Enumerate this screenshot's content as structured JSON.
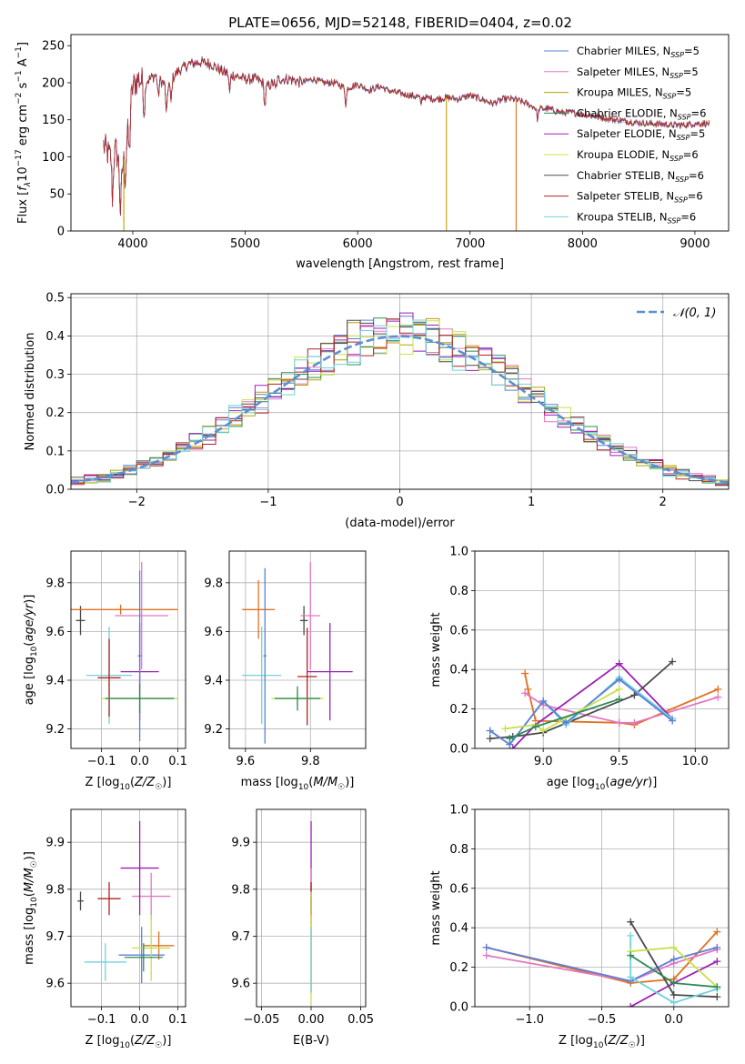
{
  "title": "PLATE=0656, MJD=52148, FIBERID=0404, z=0.02",
  "colors": {
    "blue": "#5b7fd6",
    "pink": "#e377c2",
    "olive": "#b8a000",
    "green": "#2e8b57",
    "purple": "#9b1fb4",
    "yellow": "#c8e04a",
    "gray": "#4a4a4a",
    "red": "#b22222",
    "cyan": "#6fd3d9",
    "orange": "#e07020",
    "ref": "#5a8fd6"
  },
  "chart_data": [
    {
      "id": "spectrum",
      "type": "line",
      "xlabel": "wavelength [Angstrom, rest frame]",
      "ylabel": "Flux [f_λ 10^-17 erg cm^-2 s^-1 A^-1]",
      "xlim": [
        3450,
        9300
      ],
      "ylim": [
        0,
        265
      ],
      "xticks": [
        4000,
        5000,
        6000,
        7000,
        8000,
        9000
      ],
      "yticks": [
        0,
        50,
        100,
        150,
        200,
        250
      ],
      "legend_position": "top-right",
      "legend": [
        {
          "label": "Chabrier MILES, N",
          "sub": "SSP",
          "tail": "=5",
          "color": "blue"
        },
        {
          "label": "Salpeter MILES, N",
          "sub": "SSP",
          "tail": "=5",
          "color": "pink"
        },
        {
          "label": "Kroupa MILES, N",
          "sub": "SSP",
          "tail": "=5",
          "color": "olive"
        },
        {
          "label": "Chabrier ELODIE, N",
          "sub": "SSP",
          "tail": "=6",
          "color": "green"
        },
        {
          "label": "Salpeter ELODIE, N",
          "sub": "SSP",
          "tail": "=5",
          "color": "purple"
        },
        {
          "label": "Kroupa ELODIE, N",
          "sub": "SSP",
          "tail": "=6",
          "color": "yellow"
        },
        {
          "label": "Chabrier STELIB, N",
          "sub": "SSP",
          "tail": "=6",
          "color": "gray"
        },
        {
          "label": "Salpeter STELIB, N",
          "sub": "SSP",
          "tail": "=6",
          "color": "red"
        },
        {
          "label": "Kroupa STELIB, N",
          "sub": "SSP",
          "tail": "=6",
          "color": "cyan"
        }
      ],
      "continuum": [
        [
          3740,
          115
        ],
        [
          3800,
          100
        ],
        [
          3850,
          110
        ],
        [
          3900,
          75
        ],
        [
          3950,
          130
        ],
        [
          4000,
          195
        ],
        [
          4050,
          205
        ],
        [
          4100,
          200
        ],
        [
          4150,
          205
        ],
        [
          4200,
          210
        ],
        [
          4300,
          195
        ],
        [
          4400,
          215
        ],
        [
          4500,
          225
        ],
        [
          4600,
          228
        ],
        [
          4700,
          225
        ],
        [
          4800,
          215
        ],
        [
          4900,
          210
        ],
        [
          5000,
          205
        ],
        [
          5100,
          205
        ],
        [
          5200,
          195
        ],
        [
          5300,
          205
        ],
        [
          5400,
          205
        ],
        [
          5500,
          200
        ],
        [
          5600,
          205
        ],
        [
          5700,
          200
        ],
        [
          5800,
          200
        ],
        [
          5900,
          192
        ],
        [
          6000,
          198
        ],
        [
          6100,
          190
        ],
        [
          6200,
          195
        ],
        [
          6300,
          188
        ],
        [
          6400,
          185
        ],
        [
          6500,
          182
        ],
        [
          6600,
          180
        ],
        [
          6700,
          178
        ],
        [
          6800,
          180
        ],
        [
          6900,
          178
        ],
        [
          7000,
          183
        ],
        [
          7100,
          178
        ],
        [
          7200,
          172
        ],
        [
          7300,
          178
        ],
        [
          7400,
          178
        ],
        [
          7500,
          172
        ],
        [
          7600,
          165
        ],
        [
          7700,
          165
        ],
        [
          7800,
          160
        ],
        [
          7900,
          160
        ],
        [
          8000,
          158
        ],
        [
          8100,
          155
        ],
        [
          8200,
          152
        ],
        [
          8300,
          150
        ],
        [
          8400,
          148
        ],
        [
          8500,
          146
        ],
        [
          8600,
          145
        ],
        [
          8700,
          144
        ],
        [
          8800,
          143
        ],
        [
          8900,
          143
        ],
        [
          9000,
          145
        ],
        [
          9100,
          145
        ]
      ],
      "absorption_lines": [
        [
          3820,
          60
        ],
        [
          3890,
          55
        ],
        [
          3934,
          40
        ],
        [
          3969,
          50
        ],
        [
          4102,
          45
        ],
        [
          4227,
          25
        ],
        [
          4300,
          40
        ],
        [
          4340,
          30
        ],
        [
          4861,
          25
        ],
        [
          5175,
          30
        ],
        [
          5270,
          12
        ],
        [
          5895,
          22
        ],
        [
          6563,
          10
        ],
        [
          7600,
          15
        ]
      ],
      "drops": [
        [
          3920,
          "olive"
        ],
        [
          6790,
          "olive"
        ],
        [
          7410,
          "orange"
        ]
      ]
    },
    {
      "id": "residuals",
      "type": "histogram",
      "xlabel": "(data-model)/error",
      "ylabel": "Normed distribution",
      "xlim": [
        -2.5,
        2.5
      ],
      "ylim": [
        0,
        0.51
      ],
      "xticks": [
        -2,
        -1,
        0,
        1,
        2
      ],
      "yticks": [
        0.0,
        0.1,
        0.2,
        0.3,
        0.4,
        0.5
      ],
      "grid": true,
      "legend_position": "top-right",
      "reference_label": "𝒩(0, 1)",
      "bin_width": 0.1,
      "series_colors": [
        "blue",
        "pink",
        "olive",
        "green",
        "purple",
        "yellow",
        "gray",
        "red",
        "cyan"
      ]
    },
    {
      "id": "age_vs_Z",
      "type": "errorbar",
      "xlabel": "Z [log10(Z/Z☉)]",
      "ylabel": "age  [log10(age/yr)]",
      "xlim": [
        -0.18,
        0.12
      ],
      "ylim": [
        9.12,
        9.93
      ],
      "xticks": [
        -0.1,
        0.0,
        0.1
      ],
      "yticks": [
        9.2,
        9.4,
        9.6,
        9.8
      ],
      "grid": true,
      "points": [
        {
          "x": -0.155,
          "y": 9.645,
          "xerr": 0.012,
          "yerr": 0.06,
          "color": "gray"
        },
        {
          "x": -0.08,
          "y": 9.42,
          "xerr": 0.06,
          "yerr": 0.2,
          "color": "cyan"
        },
        {
          "x": -0.08,
          "y": 9.41,
          "xerr": 0.03,
          "yerr": 0.16,
          "color": "red"
        },
        {
          "x": -0.05,
          "y": 9.69,
          "xerr": 0.15,
          "yerr": 0.02,
          "color": "orange"
        },
        {
          "x": 0.005,
          "y": 9.665,
          "xerr": 0.07,
          "yerr": 0.22,
          "color": "pink"
        },
        {
          "x": 0.0,
          "y": 9.435,
          "xerr": 0.05,
          "yerr": 0.2,
          "color": "purple"
        },
        {
          "x": 0.0,
          "y": 9.5,
          "xerr": 0.005,
          "yerr": 0.35,
          "color": "blue"
        },
        {
          "x": 0.0,
          "y": 9.325,
          "xerr": 0.1,
          "yerr": 0.05,
          "color": "yellow"
        },
        {
          "x": 0.0,
          "y": 9.325,
          "xerr": 0.09,
          "yerr": 0.06,
          "color": "green"
        }
      ]
    },
    {
      "id": "age_vs_mass",
      "type": "errorbar",
      "xlabel": "mass [log10(M/M☉)]",
      "ylabel": "",
      "xlim": [
        9.55,
        9.97
      ],
      "ylim": [
        9.12,
        9.93
      ],
      "xticks": [
        9.6,
        9.8
      ],
      "yticks": [
        9.2,
        9.4,
        9.6,
        9.8
      ],
      "grid": true,
      "points": [
        {
          "x": 9.78,
          "y": 9.645,
          "xerr": 0.012,
          "yerr": 0.06,
          "color": "gray"
        },
        {
          "x": 9.65,
          "y": 9.42,
          "xerr": 0.06,
          "yerr": 0.2,
          "color": "cyan"
        },
        {
          "x": 9.79,
          "y": 9.415,
          "xerr": 0.03,
          "yerr": 0.2,
          "color": "red"
        },
        {
          "x": 9.64,
          "y": 9.69,
          "xerr": 0.05,
          "yerr": 0.12,
          "color": "orange"
        },
        {
          "x": 9.8,
          "y": 9.665,
          "xerr": 0.03,
          "yerr": 0.22,
          "color": "pink"
        },
        {
          "x": 9.86,
          "y": 9.435,
          "xerr": 0.07,
          "yerr": 0.2,
          "color": "purple"
        },
        {
          "x": 9.66,
          "y": 9.5,
          "xerr": 0.005,
          "yerr": 0.36,
          "color": "blue"
        },
        {
          "x": 9.76,
          "y": 9.325,
          "xerr": 0.08,
          "yerr": 0.03,
          "color": "yellow"
        },
        {
          "x": 9.76,
          "y": 9.325,
          "xerr": 0.07,
          "yerr": 0.05,
          "color": "green"
        }
      ]
    },
    {
      "id": "mass_weight_vs_age",
      "type": "line",
      "xlabel": "age  [log10(age/yr)]",
      "ylabel": "mass weight",
      "xlim": [
        8.55,
        10.22
      ],
      "ylim": [
        0,
        1.0
      ],
      "xticks": [
        9.0,
        9.5,
        10.0
      ],
      "yticks": [
        0.0,
        0.2,
        0.4,
        0.6,
        0.8,
        1.0
      ],
      "grid": true,
      "series": [
        {
          "color": "orange",
          "x": [
            8.88,
            8.9,
            8.95,
            9.5,
            9.6,
            10.15
          ],
          "y": [
            0.38,
            0.3,
            0.14,
            0.13,
            0.12,
            0.3
          ]
        },
        {
          "color": "pink",
          "x": [
            8.88,
            9.0,
            9.5,
            9.6,
            10.15
          ],
          "y": [
            0.28,
            0.22,
            0.13,
            0.13,
            0.26
          ]
        },
        {
          "color": "purple",
          "x": [
            8.8,
            8.95,
            9.5,
            9.85
          ],
          "y": [
            0.0,
            0.12,
            0.43,
            0.15
          ]
        },
        {
          "color": "gray",
          "x": [
            8.65,
            8.8,
            9.0,
            9.6,
            9.85
          ],
          "y": [
            0.05,
            0.06,
            0.08,
            0.27,
            0.44
          ]
        },
        {
          "color": "cyan",
          "x": [
            8.65,
            8.78,
            9.0,
            9.15,
            9.5,
            9.85
          ],
          "y": [
            0.09,
            0.02,
            0.24,
            0.12,
            0.36,
            0.15
          ]
        },
        {
          "color": "blue",
          "x": [
            8.65,
            8.78,
            9.0,
            9.15,
            9.5,
            9.85
          ],
          "y": [
            0.09,
            0.02,
            0.24,
            0.13,
            0.35,
            0.14
          ]
        },
        {
          "color": "yellow",
          "x": [
            8.75,
            8.95,
            9.0,
            9.5
          ],
          "y": [
            0.1,
            0.12,
            0.09,
            0.3
          ]
        },
        {
          "color": "green",
          "x": [
            8.78,
            8.95,
            9.5
          ],
          "y": [
            0.05,
            0.11,
            0.25
          ]
        }
      ]
    },
    {
      "id": "mass_vs_Z",
      "type": "errorbar",
      "xlabel": "Z [log10(Z/Z☉)]",
      "ylabel": "mass [log10(M/M☉)]",
      "xlim": [
        -0.18,
        0.12
      ],
      "ylim": [
        9.55,
        9.97
      ],
      "xticks": [
        -0.1,
        0.0,
        0.1
      ],
      "yticks": [
        9.6,
        9.7,
        9.8,
        9.9
      ],
      "grid": true,
      "points": [
        {
          "x": -0.155,
          "y": 9.775,
          "xerr": 0.008,
          "yerr": 0.02,
          "color": "gray"
        },
        {
          "x": -0.09,
          "y": 9.645,
          "xerr": 0.055,
          "yerr": 0.04,
          "color": "cyan"
        },
        {
          "x": -0.08,
          "y": 9.78,
          "xerr": 0.03,
          "yerr": 0.035,
          "color": "red"
        },
        {
          "x": 0.05,
          "y": 9.68,
          "xerr": 0.04,
          "yerr": 0.03,
          "color": "orange"
        },
        {
          "x": 0.03,
          "y": 9.785,
          "xerr": 0.05,
          "yerr": 0.05,
          "color": "pink"
        },
        {
          "x": 0.0,
          "y": 9.845,
          "xerr": 0.05,
          "yerr": 0.1,
          "color": "purple"
        },
        {
          "x": 0.005,
          "y": 9.66,
          "xerr": 0.06,
          "yerr": 0.06,
          "color": "blue"
        },
        {
          "x": 0.03,
          "y": 9.675,
          "xerr": 0.05,
          "yerr": 0.07,
          "color": "yellow"
        },
        {
          "x": 0.01,
          "y": 9.655,
          "xerr": 0.05,
          "yerr": 0.03,
          "color": "green"
        }
      ]
    },
    {
      "id": "mass_vs_ebv",
      "type": "errorbar",
      "xlabel": "E(B-V)",
      "ylabel": "",
      "xlim": [
        -0.055,
        0.055
      ],
      "ylim": [
        9.55,
        9.97
      ],
      "xticks": [
        -0.05,
        0.0,
        0.05
      ],
      "yticks": [
        9.6,
        9.7,
        9.8,
        9.9
      ],
      "grid": true,
      "points": [
        {
          "x": 0.0,
          "y": 9.845,
          "xerr": 0.0,
          "yerr": 0.1,
          "color": "purple"
        },
        {
          "x": 0.0,
          "y": 9.785,
          "xerr": 0.0,
          "yerr": 0.06,
          "color": "pink"
        },
        {
          "x": 0.0,
          "y": 9.78,
          "xerr": 0.0,
          "yerr": 0.035,
          "color": "red"
        },
        {
          "x": 0.0,
          "y": 9.68,
          "xerr": 0.0,
          "yerr": 0.1,
          "color": "orange"
        },
        {
          "x": 0.0,
          "y": 9.675,
          "xerr": 0.0,
          "yerr": 0.12,
          "color": "yellow"
        },
        {
          "x": 0.0,
          "y": 9.65,
          "xerr": 0.0,
          "yerr": 0.07,
          "color": "cyan"
        }
      ]
    },
    {
      "id": "mass_weight_vs_Z",
      "type": "line",
      "xlabel": "Z [log10(Z/Z☉)]",
      "ylabel": "mass weight",
      "xlim": [
        -1.38,
        0.38
      ],
      "ylim": [
        0,
        1.0
      ],
      "xticks": [
        -1.0,
        -0.5,
        0.0
      ],
      "yticks": [
        0.0,
        0.2,
        0.4,
        0.6,
        0.8,
        1.0
      ],
      "grid": true,
      "series": [
        {
          "color": "orange",
          "x": [
            -1.3,
            -0.3,
            0.0,
            0.3
          ],
          "y": [
            0.3,
            0.12,
            0.14,
            0.38
          ]
        },
        {
          "color": "pink",
          "x": [
            -1.3,
            -0.3,
            0.0,
            0.3
          ],
          "y": [
            0.26,
            0.13,
            0.22,
            0.29
          ]
        },
        {
          "color": "blue",
          "x": [
            -1.3,
            -0.3,
            0.0,
            0.3
          ],
          "y": [
            0.3,
            0.13,
            0.24,
            0.3
          ]
        },
        {
          "color": "purple",
          "x": [
            -0.3,
            0.0,
            0.3
          ],
          "y": [
            0.0,
            0.12,
            0.23
          ]
        },
        {
          "color": "gray",
          "x": [
            -0.3,
            0.0,
            0.3
          ],
          "y": [
            0.43,
            0.06,
            0.05
          ]
        },
        {
          "color": "cyan",
          "x": [
            -0.3,
            -0.3,
            0.0,
            0.3
          ],
          "y": [
            0.36,
            0.15,
            0.02,
            0.09
          ]
        },
        {
          "color": "yellow",
          "x": [
            -0.3,
            0.0,
            0.3
          ],
          "y": [
            0.28,
            0.3,
            0.1
          ]
        },
        {
          "color": "green",
          "x": [
            -0.3,
            0.0,
            0.3
          ],
          "y": [
            0.26,
            0.12,
            0.1
          ]
        }
      ]
    }
  ]
}
